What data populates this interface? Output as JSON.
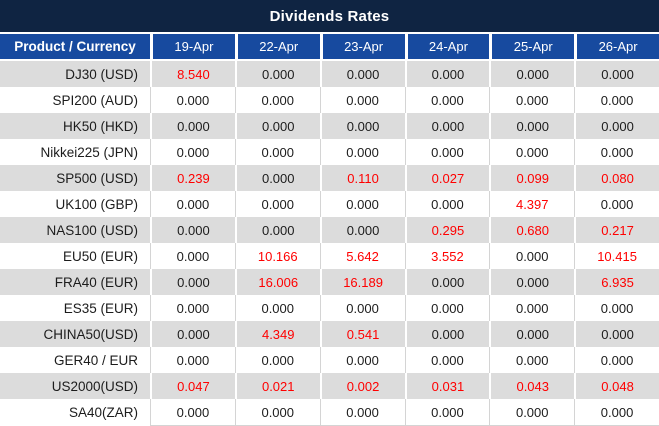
{
  "title": "Dividends Rates",
  "columns": [
    "Product / Currency",
    "19-Apr",
    "22-Apr",
    "23-Apr",
    "24-Apr",
    "25-Apr",
    "26-Apr"
  ],
  "colors": {
    "title_bar": "#0F2442",
    "header_blue": "#174A9F",
    "row_alt_gray": "#DCDCDC",
    "row_white": "#FFFFFF",
    "value_red": "#FF0000",
    "value_black": "#1C1C1C",
    "grid_line": "#D4D4D4"
  },
  "rows": [
    {
      "product": "DJ30 (USD)",
      "values": [
        "8.540",
        "0.000",
        "0.000",
        "0.000",
        "0.000",
        "0.000"
      ],
      "red": [
        true,
        false,
        false,
        false,
        false,
        false
      ]
    },
    {
      "product": "SPI200 (AUD)",
      "values": [
        "0.000",
        "0.000",
        "0.000",
        "0.000",
        "0.000",
        "0.000"
      ],
      "red": [
        false,
        false,
        false,
        false,
        false,
        false
      ]
    },
    {
      "product": "HK50 (HKD)",
      "values": [
        "0.000",
        "0.000",
        "0.000",
        "0.000",
        "0.000",
        "0.000"
      ],
      "red": [
        false,
        false,
        false,
        false,
        false,
        false
      ]
    },
    {
      "product": "Nikkei225 (JPN)",
      "values": [
        "0.000",
        "0.000",
        "0.000",
        "0.000",
        "0.000",
        "0.000"
      ],
      "red": [
        false,
        false,
        false,
        false,
        false,
        false
      ]
    },
    {
      "product": "SP500 (USD)",
      "values": [
        "0.239",
        "0.000",
        "0.110",
        "0.027",
        "0.099",
        "0.080"
      ],
      "red": [
        true,
        false,
        true,
        true,
        true,
        true
      ]
    },
    {
      "product": "UK100 (GBP)",
      "values": [
        "0.000",
        "0.000",
        "0.000",
        "0.000",
        "4.397",
        "0.000"
      ],
      "red": [
        false,
        false,
        false,
        false,
        true,
        false
      ]
    },
    {
      "product": "NAS100 (USD)",
      "values": [
        "0.000",
        "0.000",
        "0.000",
        "0.295",
        "0.680",
        "0.217"
      ],
      "red": [
        false,
        false,
        false,
        true,
        true,
        true
      ]
    },
    {
      "product": "EU50 (EUR)",
      "values": [
        "0.000",
        "10.166",
        "5.642",
        "3.552",
        "0.000",
        "10.415"
      ],
      "red": [
        false,
        true,
        true,
        true,
        false,
        true
      ]
    },
    {
      "product": "FRA40 (EUR)",
      "values": [
        "0.000",
        "16.006",
        "16.189",
        "0.000",
        "0.000",
        "6.935"
      ],
      "red": [
        false,
        true,
        true,
        false,
        false,
        true
      ]
    },
    {
      "product": "ES35 (EUR)",
      "values": [
        "0.000",
        "0.000",
        "0.000",
        "0.000",
        "0.000",
        "0.000"
      ],
      "red": [
        false,
        false,
        false,
        false,
        false,
        false
      ]
    },
    {
      "product": "CHINA50(USD)",
      "values": [
        "0.000",
        "4.349",
        "0.541",
        "0.000",
        "0.000",
        "0.000"
      ],
      "red": [
        false,
        true,
        true,
        false,
        false,
        false
      ]
    },
    {
      "product": "GER40 / EUR",
      "values": [
        "0.000",
        "0.000",
        "0.000",
        "0.000",
        "0.000",
        "0.000"
      ],
      "red": [
        false,
        false,
        false,
        false,
        false,
        false
      ]
    },
    {
      "product": "US2000(USD)",
      "values": [
        "0.047",
        "0.021",
        "0.002",
        "0.031",
        "0.043",
        "0.048"
      ],
      "red": [
        true,
        true,
        true,
        true,
        true,
        true
      ]
    },
    {
      "product": "SA40(ZAR)",
      "values": [
        "0.000",
        "0.000",
        "0.000",
        "0.000",
        "0.000",
        "0.000"
      ],
      "red": [
        false,
        false,
        false,
        false,
        false,
        false
      ]
    }
  ]
}
